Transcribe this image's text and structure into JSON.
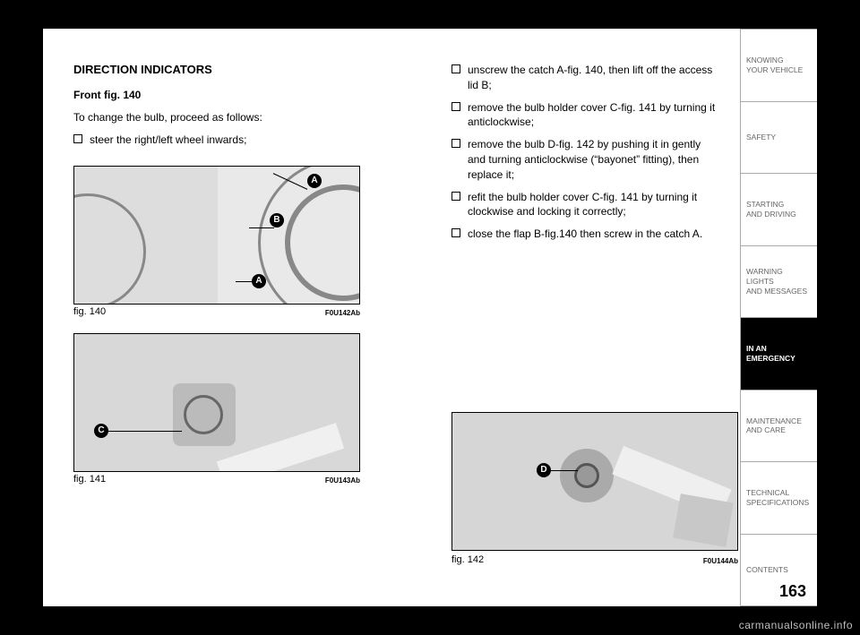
{
  "page_number": "163",
  "watermark": "carmanualsonline.info",
  "left_column": {
    "heading": "DIRECTION INDICATORS",
    "subheading": "Front fig. 140",
    "intro": "To change the bulb, proceed as follows:",
    "bullets": [
      "steer the right/left wheel inwards;"
    ]
  },
  "right_column": {
    "bullets": [
      "unscrew the catch A-fig. 140, then lift off the access lid B;",
      "remove the bulb holder cover C-fig. 141 by turning it anticlockwise;",
      "remove the bulb D-fig. 142 by pushing it in gently and turning anticlockwise (“bayonet” fitting), then replace it;",
      "refit the bulb holder cover C-fig. 141 by turning it clockwise and locking it correctly;",
      "close the flap B-fig.140 then screw in the catch A."
    ]
  },
  "figures": {
    "fig140": {
      "caption": "fig. 140",
      "code": "F0U142Ab",
      "callouts": [
        "A",
        "B",
        "A"
      ]
    },
    "fig141": {
      "caption": "fig. 141",
      "code": "F0U143Ab",
      "callouts": [
        "C"
      ]
    },
    "fig142": {
      "caption": "fig. 142",
      "code": "F0U144Ab",
      "callouts": [
        "D"
      ]
    }
  },
  "sidebar": {
    "tabs": [
      "KNOWING\nYOUR VEHICLE",
      "SAFETY",
      "STARTING\nAND DRIVING",
      "WARNING LIGHTS\nAND MESSAGES",
      "IN AN\nEMERGENCY",
      "MAINTENANCE\nAND CARE",
      "TECHNICAL\nSPECIFICATIONS",
      "CONTENTS"
    ],
    "active_index": 4
  },
  "colors": {
    "page_bg": "#ffffff",
    "outer_bg": "#000000",
    "fig_bg": "#e9e9e9",
    "tab_inactive_text": "#666666",
    "tab_active_bg": "#000000",
    "tab_active_text": "#ffffff",
    "watermark": "#bfbfbf"
  }
}
